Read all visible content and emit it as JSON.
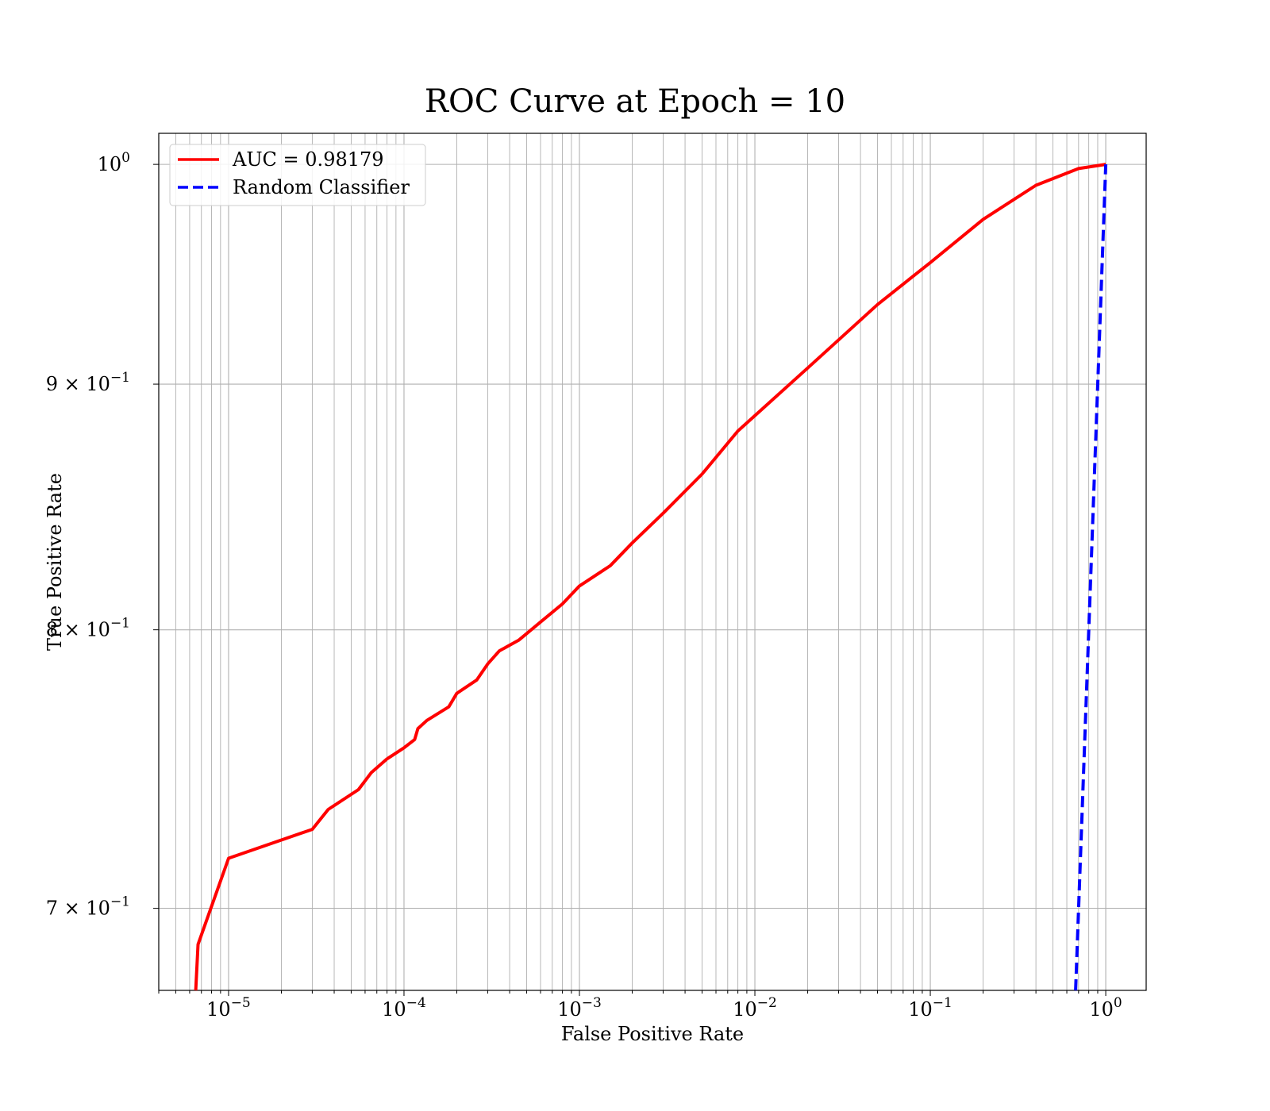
{
  "chart_data": {
    "type": "line",
    "title": "ROC Curve at Epoch = 10",
    "xlabel": "False Positive Rate",
    "ylabel": "True Positive Rate",
    "xscale": "log",
    "yscale": "log",
    "xlim": [
      4e-06,
      1.7
    ],
    "ylim": [
      0.673,
      1.015
    ],
    "grid": true,
    "legend_position": "upper-left",
    "x_ticks": [
      {
        "base": "10",
        "exp": "−5"
      },
      {
        "base": "10",
        "exp": "−4"
      },
      {
        "base": "10",
        "exp": "−3"
      },
      {
        "base": "10",
        "exp": "−2"
      },
      {
        "base": "10",
        "exp": "−1"
      },
      {
        "base": "10",
        "exp": "0"
      }
    ],
    "y_ticks": [
      {
        "base": "10",
        "exp": "0"
      },
      {
        "base": "9 × 10",
        "exp": "−1"
      },
      {
        "base": "8 × 10",
        "exp": "−1"
      },
      {
        "base": "7 × 10",
        "exp": "−1"
      }
    ],
    "series": [
      {
        "name": "AUC = 0.98179",
        "color": "#ff0000",
        "style": "solid",
        "x": [
          6.5e-06,
          6.7e-06,
          1e-05,
          3e-05,
          3.7e-05,
          5.5e-05,
          6.5e-05,
          8e-05,
          0.0001,
          0.000115,
          0.00012,
          0.000135,
          0.00018,
          0.0002,
          0.00026,
          0.0003,
          0.00035,
          0.00045,
          0.0006,
          0.0008,
          0.001,
          0.0015,
          0.002,
          0.003,
          0.005,
          0.008,
          0.02,
          0.05,
          0.1,
          0.2,
          0.4,
          0.7,
          1.0
        ],
        "y": [
          0.673,
          0.688,
          0.717,
          0.727,
          0.734,
          0.741,
          0.747,
          0.752,
          0.756,
          0.759,
          0.763,
          0.766,
          0.771,
          0.776,
          0.781,
          0.787,
          0.792,
          0.796,
          0.803,
          0.81,
          0.817,
          0.825,
          0.834,
          0.846,
          0.862,
          0.88,
          0.907,
          0.935,
          0.954,
          0.974,
          0.99,
          0.998,
          1.0
        ]
      },
      {
        "name": "Random Classifier",
        "color": "#0000ff",
        "style": "dashed",
        "x": [
          0.673,
          1.0
        ],
        "y": [
          0.673,
          1.0
        ]
      }
    ]
  }
}
